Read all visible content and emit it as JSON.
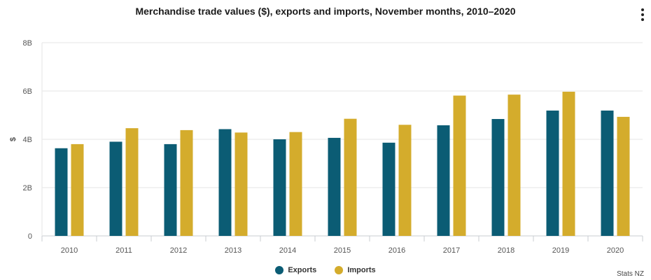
{
  "header": {
    "title": "Merchandise trade values ($), exports and imports, November months, 2010–2020"
  },
  "menu": {
    "icon": "more-vertical-icon"
  },
  "chart_data": {
    "type": "bar",
    "title": "Merchandise trade values ($), exports and imports, November months, 2010–2020",
    "xlabel": "",
    "ylabel": "$",
    "categories": [
      "2010",
      "2011",
      "2012",
      "2013",
      "2014",
      "2015",
      "2016",
      "2017",
      "2018",
      "2019",
      "2020"
    ],
    "series": [
      {
        "name": "Exports",
        "color": "#0b5c74",
        "values": [
          3.63,
          3.9,
          3.8,
          4.42,
          4.0,
          4.06,
          3.86,
          4.58,
          4.84,
          5.19,
          5.19
        ]
      },
      {
        "name": "Imports",
        "color": "#d4ac2c",
        "values": [
          3.8,
          4.46,
          4.38,
          4.28,
          4.3,
          4.85,
          4.6,
          5.81,
          5.85,
          5.97,
          4.93
        ]
      }
    ],
    "ylim": [
      0,
      8
    ],
    "yticks": [
      0,
      2,
      4,
      6,
      8
    ],
    "ytick_labels": [
      "0",
      "2B",
      "4B",
      "6B",
      "8B"
    ],
    "grid": true,
    "legend": "bottom-center"
  },
  "credits": "Stats NZ"
}
